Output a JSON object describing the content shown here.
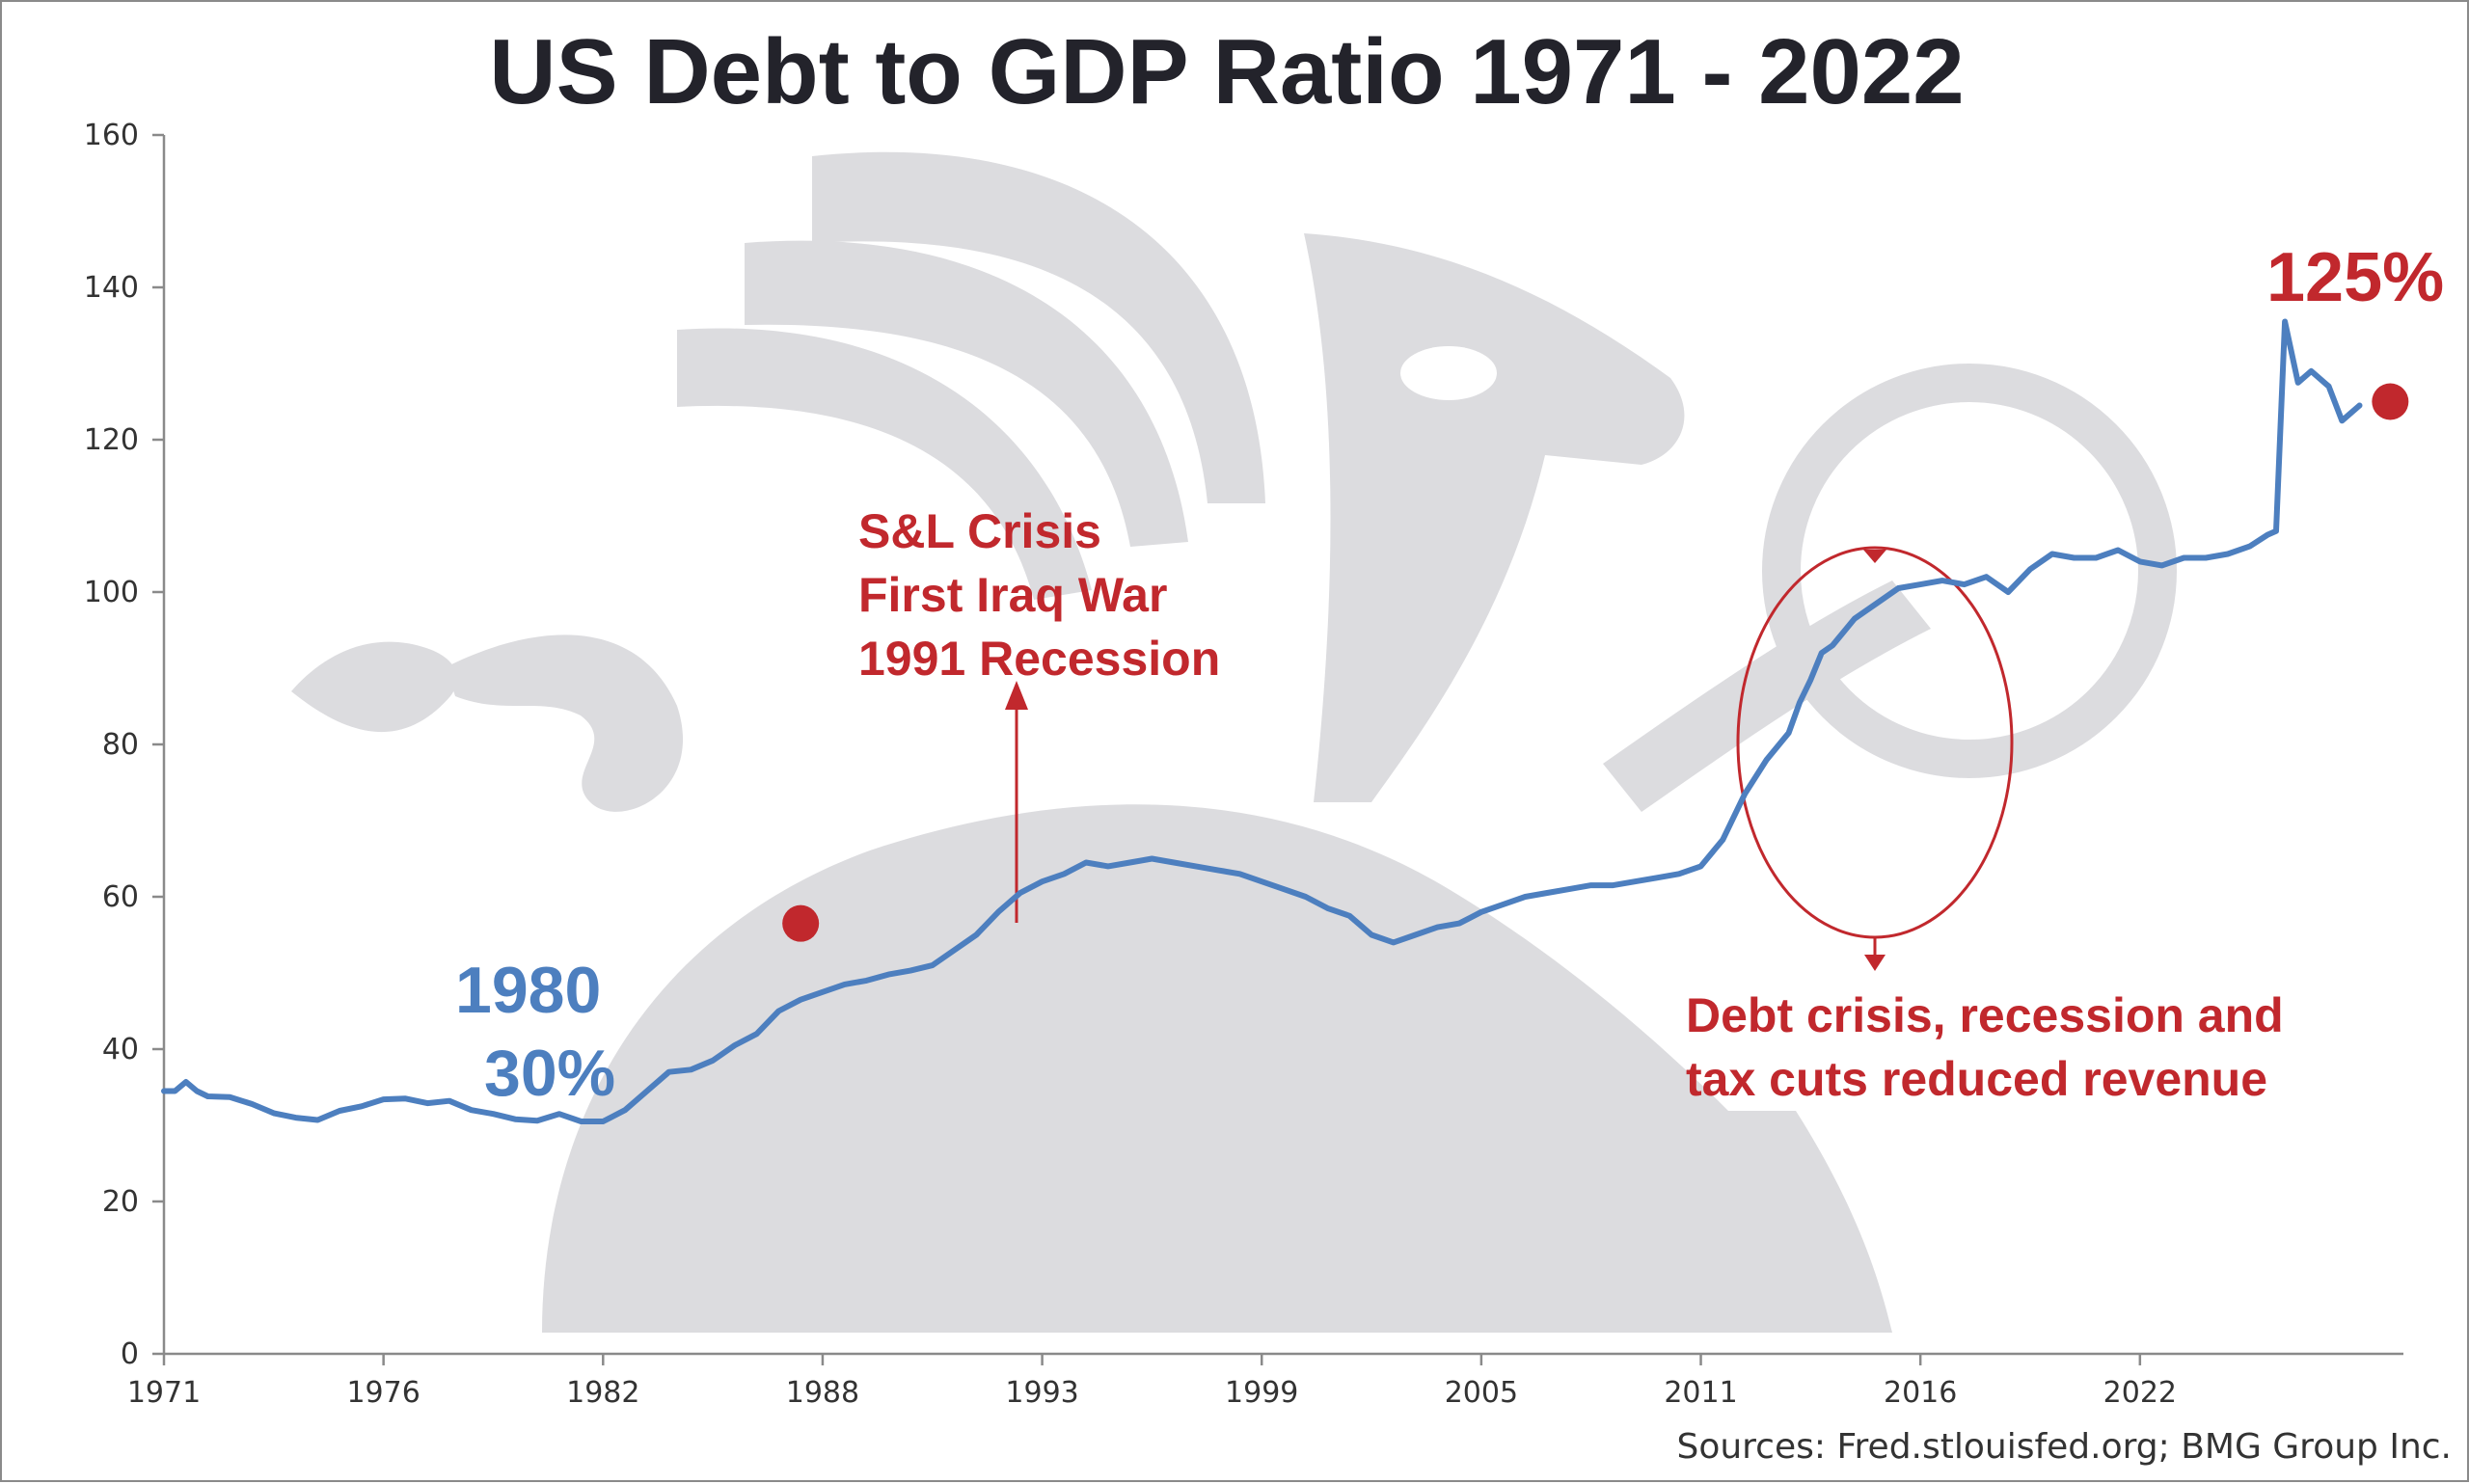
{
  "colors": {
    "line": "#4d7fbf",
    "accent": "#c1282d",
    "watermark": "#dcdcdf",
    "text": "#23232b"
  },
  "chart_data": {
    "type": "line",
    "title": "US Debt to GDP Ratio 1971 - 2022",
    "xlabel": "",
    "ylabel": "",
    "xlim": [
      1971,
      2022
    ],
    "ylim": [
      0,
      160
    ],
    "grid": false,
    "y_ticks": [
      "0",
      "20",
      "40",
      "60",
      "80",
      "100",
      "120",
      "140",
      "160"
    ],
    "x_ticks": [
      "1971",
      "1976",
      "1982",
      "1988",
      "1993",
      "1999",
      "2005",
      "2011",
      "2016",
      "2022"
    ],
    "x_tick_values": [
      1971,
      1976,
      1981,
      1986,
      1991,
      1996,
      2001,
      2006,
      2011,
      2016
    ],
    "series": [
      {
        "name": "",
        "x": [
          1971.0,
          1971.25,
          1971.5,
          1971.75,
          1972.0,
          1972.5,
          1973.0,
          1973.5,
          1974.0,
          1974.5,
          1975.0,
          1975.5,
          1976.0,
          1976.5,
          1977.0,
          1977.5,
          1978.0,
          1978.5,
          1979.0,
          1979.5,
          1980.0,
          1980.5,
          1981.0,
          1981.5,
          1982.0,
          1982.5,
          1983.0,
          1983.5,
          1984.0,
          1984.5,
          1985.0,
          1985.5,
          1986.0,
          1986.5,
          1987.0,
          1987.5,
          1988.0,
          1988.5,
          1989.0,
          1989.5,
          1990.0,
          1990.5,
          1991.0,
          1991.5,
          1992.0,
          1992.5,
          1993.0,
          1993.5,
          1994.0,
          1994.5,
          1995.0,
          1995.5,
          1996.0,
          1996.5,
          1997.0,
          1997.5,
          1998.0,
          1998.5,
          1999.0,
          1999.5,
          2000.0,
          2000.5,
          2001.0,
          2001.5,
          2002.0,
          2002.5,
          2003.0,
          2003.5,
          2004.0,
          2004.5,
          2005.0,
          2005.5,
          2006.0,
          2006.5,
          2007.0,
          2007.5,
          2008.0,
          2008.25,
          2008.5,
          2008.75,
          2009.0,
          2009.5,
          2010.0,
          2010.5,
          2011.0,
          2011.5,
          2012.0,
          2012.5,
          2013.0,
          2013.5,
          2014.0,
          2014.5,
          2015.0,
          2015.5,
          2016.0,
          2016.5,
          2017.0,
          2017.5,
          2018.0,
          2018.5,
          2018.9,
          2019.1,
          2019.3,
          2019.6,
          2019.9,
          2020.3,
          2020.6,
          2021.0
        ],
        "values": [
          34.5,
          34.5,
          35.7,
          34.5,
          33.8,
          33.7,
          32.8,
          31.6,
          31.0,
          30.7,
          31.9,
          32.5,
          33.4,
          33.5,
          32.9,
          33.2,
          32.0,
          31.5,
          30.8,
          30.6,
          31.5,
          30.5,
          30.5,
          32.0,
          34.5,
          37.0,
          37.3,
          38.5,
          40.5,
          42.0,
          45.0,
          46.5,
          47.5,
          48.5,
          49.0,
          49.8,
          50.3,
          51.0,
          53.0,
          55.0,
          58.0,
          60.5,
          62.0,
          63.0,
          64.5,
          64.0,
          64.5,
          65.0,
          64.5,
          64.0,
          63.5,
          63.0,
          62.0,
          61.0,
          60.0,
          58.5,
          57.5,
          55.0,
          54.0,
          55.0,
          56.0,
          56.5,
          58.0,
          59.0,
          60.0,
          60.5,
          61.0,
          61.5,
          61.5,
          62.0,
          62.5,
          63.0,
          64.0,
          67.5,
          73.5,
          78.0,
          81.5,
          85.5,
          88.5,
          92.0,
          93.0,
          96.5,
          98.5,
          100.5,
          101.0,
          101.5,
          101.0,
          102.0,
          100.0,
          103.0,
          105.0,
          104.5,
          104.5,
          105.5,
          104.0,
          103.5,
          104.5,
          104.5,
          105.0,
          106.0,
          107.5,
          108.0,
          135.5,
          127.5,
          129.0,
          127.0,
          122.5,
          124.5
        ]
      }
    ],
    "highlighted_points": [
      {
        "x": 1985.5,
        "y": 56.5
      },
      {
        "x": 2021.7,
        "y": 125.0
      }
    ],
    "annotations": {
      "label_1980_year": "1980",
      "label_1980_pct": "30%",
      "snl_line1": "S&L Crisis",
      "snl_line2": "First Iraq War",
      "snl_line3": "1991 Recession",
      "debt_line1": "Debt crisis, recession and",
      "debt_line2": "tax cuts reduced revenue",
      "end_value": "125%"
    },
    "source": "Sources: Fred.stlouisfed.org; BMG Group Inc."
  }
}
